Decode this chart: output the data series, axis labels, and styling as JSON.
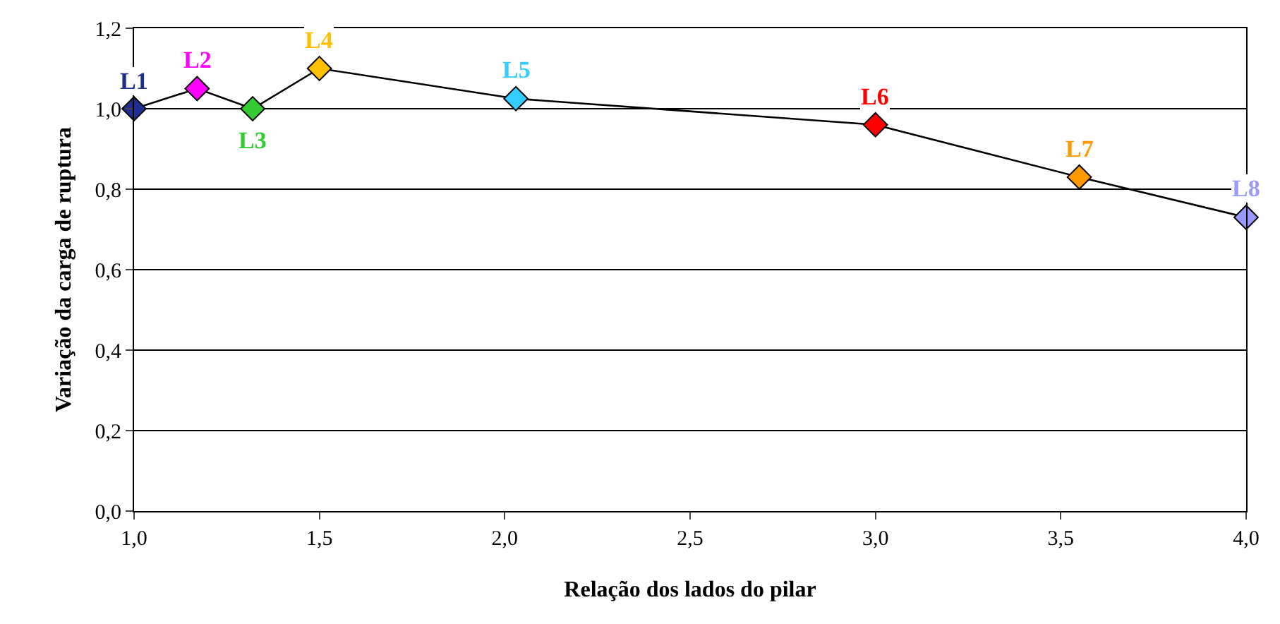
{
  "chart_data": {
    "type": "line",
    "xlabel": "Relação dos lados do pilar",
    "ylabel": "Variação da carga de ruptura",
    "x": [
      1.0,
      1.17,
      1.32,
      1.5,
      2.03,
      3.0,
      3.55,
      4.0
    ],
    "series": [
      {
        "color": "#000000",
        "colors": [
          "#1f2f8f",
          "#ff00ff",
          "#33cc33",
          "#ffc000",
          "#33ccff",
          "#ff0000",
          "#ff9900",
          "#9999ff"
        ],
        "values": [
          1.0,
          1.05,
          1.0,
          1.1,
          1.025,
          0.96,
          0.83,
          0.73
        ]
      }
    ],
    "annotations": [
      {
        "text": "L1",
        "x": 1.0,
        "y": 1.0
      },
      {
        "text": "L2",
        "x": 1.17,
        "y": 1.05
      },
      {
        "text": "L3",
        "x": 1.32,
        "y": 1.0
      },
      {
        "text": "L4",
        "x": 1.5,
        "y": 1.1
      },
      {
        "text": "L5",
        "x": 2.03,
        "y": 1.025
      },
      {
        "text": "L6",
        "x": 3.0,
        "y": 0.96
      },
      {
        "text": "L7",
        "x": 3.55,
        "y": 0.83
      },
      {
        "text": "L8",
        "x": 4.0,
        "y": 0.73
      }
    ],
    "xlim": [
      1.0,
      4.0
    ],
    "xticks": [
      {
        "value": 1.0,
        "label": "1,0"
      },
      {
        "value": 1.5,
        "label": "1,5"
      },
      {
        "value": 2.0,
        "label": "2,0"
      },
      {
        "value": 2.5,
        "label": "2,5"
      },
      {
        "value": 3.0,
        "label": "3,0"
      },
      {
        "value": 3.5,
        "label": "3,5"
      },
      {
        "value": 4.0,
        "label": "4,0"
      }
    ],
    "ylim": [
      0,
      1.2
    ],
    "yticks": [
      {
        "value": 0,
        "label": "0,0"
      },
      {
        "value": 0.2,
        "label": "0,2"
      },
      {
        "value": 0.4,
        "label": "0,4"
      },
      {
        "value": 0.6,
        "label": "0,6"
      },
      {
        "value": 0.8,
        "label": "0,8"
      },
      {
        "value": 1.0,
        "label": "1,0"
      },
      {
        "value": 1.2,
        "label": "1,2"
      }
    ],
    "grid": "y",
    "marker": "diamond",
    "line_style": "solid"
  }
}
